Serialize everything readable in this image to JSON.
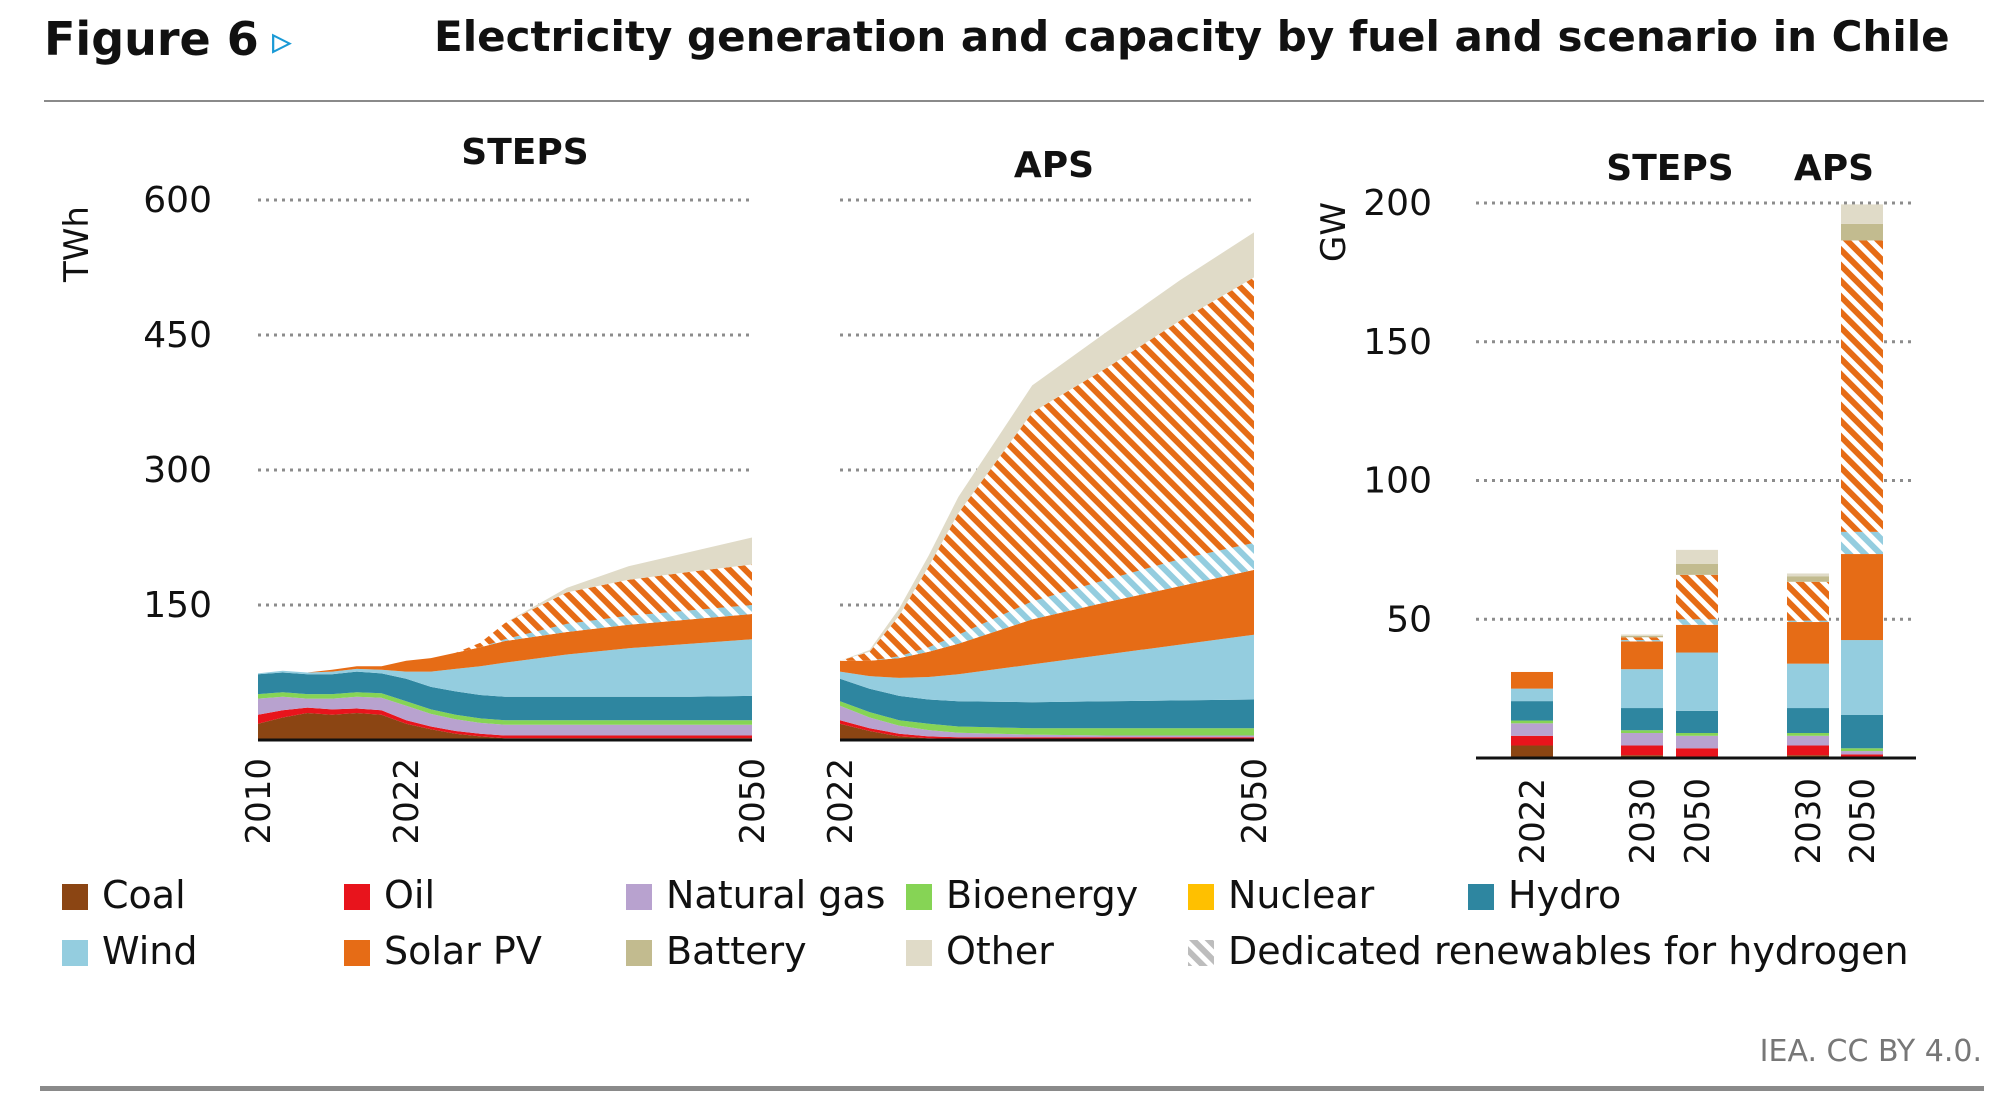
{
  "figure_label": "Figure 6",
  "figure_title": "Electricity generation and capacity by fuel and scenario in Chile",
  "source": "IEA. CC BY 4.0.",
  "colors": {
    "coal": "#8b4513",
    "oil": "#e8141c",
    "natural_gas": "#b8a2cf",
    "bioenergy": "#86d455",
    "nuclear": "#ffc000",
    "hydro": "#2e86a0",
    "wind": "#94cddf",
    "solar_pv": "#e66c16",
    "battery": "#c2bb8f",
    "other": "#e0dbc8",
    "hydrogen_solar": "#e66c16",
    "hydrogen_wind": "#94cddf"
  },
  "legend": [
    {
      "key": "coal",
      "label": "Coal"
    },
    {
      "key": "oil",
      "label": "Oil"
    },
    {
      "key": "natural_gas",
      "label": "Natural gas"
    },
    {
      "key": "bioenergy",
      "label": "Bioenergy"
    },
    {
      "key": "nuclear",
      "label": "Nuclear"
    },
    {
      "key": "hydro",
      "label": "Hydro"
    },
    {
      "key": "wind",
      "label": "Wind"
    },
    {
      "key": "solar_pv",
      "label": "Solar PV"
    },
    {
      "key": "battery",
      "label": "Battery"
    },
    {
      "key": "other",
      "label": "Other"
    },
    {
      "key": "dedicated",
      "label": "Dedicated renewables for hydrogen"
    }
  ],
  "chart_data": [
    {
      "type": "area",
      "stacked": true,
      "title": "STEPS",
      "ylabel": "TWh",
      "ylim": [
        0,
        600
      ],
      "yticks": [
        150,
        300,
        450,
        600
      ],
      "xlim": [
        2010,
        2050
      ],
      "xtick_labels": [
        "2010",
        "2022",
        "2050"
      ],
      "xticks": [
        2010,
        2022,
        2050
      ],
      "grid": true,
      "x": [
        2010,
        2012,
        2014,
        2016,
        2018,
        2020,
        2022,
        2024,
        2026,
        2028,
        2030,
        2035,
        2040,
        2045,
        2050
      ],
      "series": [
        {
          "key": "coal",
          "values": [
            18,
            25,
            30,
            28,
            30,
            28,
            18,
            12,
            7,
            4,
            2,
            2,
            2,
            2,
            2
          ]
        },
        {
          "key": "oil",
          "values": [
            10,
            8,
            6,
            6,
            5,
            5,
            4,
            3,
            3,
            3,
            3,
            3,
            3,
            3,
            3
          ]
        },
        {
          "key": "natural_gas",
          "values": [
            18,
            15,
            10,
            12,
            13,
            14,
            16,
            14,
            13,
            12,
            12,
            12,
            12,
            12,
            12
          ]
        },
        {
          "key": "bioenergy",
          "values": [
            5,
            5,
            5,
            5,
            5,
            5,
            5,
            5,
            5,
            5,
            5,
            5,
            5,
            5,
            5
          ]
        },
        {
          "key": "nuclear",
          "values": [
            0,
            0,
            0,
            0,
            0,
            0,
            0,
            0,
            0,
            0,
            0,
            0,
            0,
            0,
            0
          ]
        },
        {
          "key": "hydro",
          "values": [
            22,
            22,
            22,
            22,
            23,
            22,
            25,
            25,
            26,
            26,
            26,
            26,
            26,
            26,
            27
          ]
        },
        {
          "key": "wind",
          "values": [
            1,
            2,
            2,
            3,
            3,
            4,
            8,
            17,
            25,
            32,
            38,
            47,
            54,
            59,
            63
          ]
        },
        {
          "key": "solar_pv",
          "values": [
            0,
            0,
            0,
            2,
            3,
            4,
            12,
            15,
            18,
            21,
            24,
            25,
            26,
            27,
            28
          ]
        },
        {
          "key": "battery",
          "values": [
            0,
            0,
            0,
            0,
            0,
            0,
            0,
            0,
            0,
            0,
            0,
            0,
            0,
            0,
            0
          ]
        },
        {
          "key": "dedicated_wind",
          "values": [
            0,
            0,
            0,
            0,
            0,
            0,
            0,
            0,
            0,
            0,
            2,
            9,
            10,
            10,
            10
          ]
        },
        {
          "key": "dedicated_solar",
          "values": [
            0,
            0,
            0,
            0,
            0,
            0,
            0,
            0,
            0,
            5,
            18,
            35,
            40,
            43,
            45
          ]
        },
        {
          "key": "other",
          "values": [
            0,
            0,
            0,
            0,
            0,
            0,
            0,
            0,
            0,
            0,
            0,
            5,
            15,
            22,
            30
          ]
        }
      ]
    },
    {
      "type": "area",
      "stacked": true,
      "title": "APS",
      "ylim": [
        0,
        600
      ],
      "xlim": [
        2022,
        2050
      ],
      "xtick_labels": [
        "2022",
        "2050"
      ],
      "xticks": [
        2022,
        2050
      ],
      "grid": true,
      "x": [
        2022,
        2024,
        2026,
        2028,
        2030,
        2035,
        2040,
        2045,
        2050
      ],
      "series": [
        {
          "key": "coal",
          "values": [
            18,
            10,
            4,
            2,
            1,
            1,
            1,
            1,
            1
          ]
        },
        {
          "key": "oil",
          "values": [
            4,
            3,
            3,
            2,
            2,
            2,
            2,
            2,
            2
          ]
        },
        {
          "key": "natural_gas",
          "values": [
            16,
            12,
            9,
            7,
            5,
            3,
            2,
            2,
            2
          ]
        },
        {
          "key": "bioenergy",
          "values": [
            5,
            6,
            6,
            7,
            7,
            7,
            8,
            8,
            8
          ]
        },
        {
          "key": "nuclear",
          "values": [
            0,
            0,
            0,
            0,
            0,
            0,
            0,
            0,
            0
          ]
        },
        {
          "key": "hydro",
          "values": [
            25,
            26,
            27,
            27,
            28,
            29,
            30,
            31,
            32
          ]
        },
        {
          "key": "wind",
          "values": [
            8,
            14,
            20,
            25,
            30,
            42,
            52,
            62,
            72
          ]
        },
        {
          "key": "solar_pv",
          "values": [
            12,
            17,
            22,
            28,
            34,
            50,
            58,
            65,
            72
          ]
        },
        {
          "key": "battery",
          "values": [
            0,
            0,
            0,
            0,
            0,
            0,
            0,
            0,
            0
          ]
        },
        {
          "key": "dedicated_wind",
          "values": [
            0,
            0,
            2,
            5,
            10,
            20,
            25,
            30,
            30
          ]
        },
        {
          "key": "dedicated_solar",
          "values": [
            0,
            10,
            45,
            90,
            135,
            210,
            235,
            265,
            295
          ]
        },
        {
          "key": "other",
          "values": [
            0,
            2,
            8,
            12,
            18,
            30,
            40,
            45,
            50
          ]
        }
      ]
    },
    {
      "type": "bar",
      "stacked": true,
      "group_labels": [
        "STEPS",
        "APS"
      ],
      "ylabel": "GW",
      "ylim": [
        0,
        200
      ],
      "yticks": [
        50,
        100,
        150,
        200
      ],
      "grid": true,
      "categories": [
        "2022",
        "2030",
        "2050",
        "2030",
        "2050"
      ],
      "groups": [
        "",
        "STEPS",
        "STEPS",
        "APS",
        "APS"
      ],
      "series": [
        {
          "key": "coal",
          "values": [
            4.5,
            1.0,
            0.5,
            1.0,
            0.3
          ]
        },
        {
          "key": "oil",
          "values": [
            3.5,
            3.5,
            3.0,
            3.5,
            1.0
          ]
        },
        {
          "key": "natural_gas",
          "values": [
            4.5,
            4.5,
            4.5,
            3.5,
            1.2
          ]
        },
        {
          "key": "bioenergy",
          "values": [
            1.0,
            1.0,
            1.0,
            1.0,
            1.0
          ]
        },
        {
          "key": "nuclear",
          "values": [
            0,
            0,
            0,
            0,
            0
          ]
        },
        {
          "key": "hydro",
          "values": [
            7.0,
            8.0,
            8.0,
            9.0,
            12.0
          ]
        },
        {
          "key": "wind",
          "values": [
            4.5,
            14.0,
            21.0,
            16.0,
            27.0
          ]
        },
        {
          "key": "solar_pv",
          "values": [
            6.0,
            10.0,
            10.0,
            15.0,
            31.0
          ]
        },
        {
          "key": "dedicated_wind",
          "values": [
            0,
            0.5,
            2.0,
            0.5,
            8.0
          ]
        },
        {
          "key": "dedicated_solar",
          "values": [
            0,
            1.0,
            16.0,
            14.0,
            105.0
          ]
        },
        {
          "key": "battery",
          "values": [
            0,
            0.5,
            4.0,
            2.0,
            6.0
          ]
        },
        {
          "key": "other",
          "values": [
            0,
            0.5,
            5.0,
            1.0,
            7.0
          ]
        }
      ]
    }
  ]
}
